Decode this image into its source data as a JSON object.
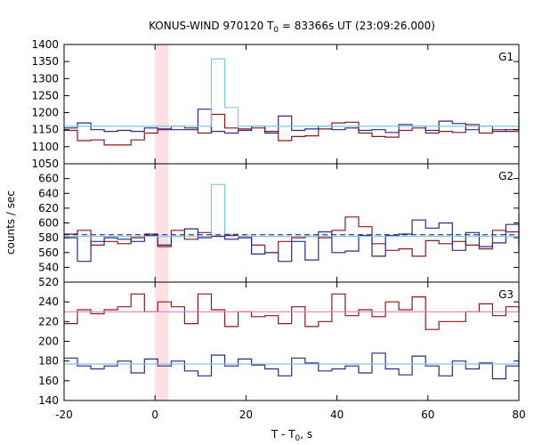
{
  "chart_data": {
    "type": "line",
    "title_main": "KONUS-WIND 970120 T",
    "title_sub": "0",
    "title_rest": " = 83366s UT (23:09:26.000)",
    "xlabel_main": "T - T",
    "xlabel_sub": "0",
    "xlabel_rest": ", s",
    "ylabel": "counts / sec",
    "xlim": [
      -20,
      80
    ],
    "x_ticks": [
      "-20",
      "0",
      "20",
      "40",
      "60",
      "80"
    ],
    "x_tick_values": [
      -20,
      0,
      20,
      40,
      60,
      80
    ],
    "highlight_band": [
      0,
      3
    ],
    "colors": {
      "dark_red": "#8b1a1a",
      "navy": "#2a2a8c",
      "light_blue": "#7ec8e3",
      "pink": "#e87fbf",
      "band": "#fde0e4",
      "dashed": "#1a1a6e"
    },
    "panels": [
      {
        "label": "G1",
        "ylim": [
          1050,
          1400
        ],
        "y_ticks": [
          "1050",
          "1100",
          "1150",
          "1200",
          "1250",
          "1300",
          "1350",
          "1400"
        ],
        "y_tick_values": [
          1050,
          1100,
          1150,
          1200,
          1250,
          1300,
          1350,
          1400
        ],
        "bins": {
          "start": -20,
          "width": 2.944
        },
        "series": [
          {
            "color_key": "dark_red",
            "values": [
              1148,
              1118,
              1120,
              1105,
              1105,
              1120,
              1140,
              1152,
              1160,
              1155,
              1140,
              1195,
              1155,
              1152,
              1155,
              1145,
              1118,
              1130,
              1132,
              1152,
              1170,
              1172,
              1140,
              1130,
              1128,
              1148,
              1155,
              1140,
              1145,
              1142,
              1165,
              1140,
              1150,
              1145
            ]
          },
          {
            "color_key": "navy",
            "values": [
              1155,
              1170,
              1150,
              1145,
              1148,
              1145,
              1155,
              1150,
              1150,
              1150,
              1210,
              1145,
              1140,
              1148,
              1160,
              1140,
              1190,
              1148,
              1152,
              1160,
              1150,
              1155,
              1148,
              1150,
              1142,
              1165,
              1160,
              1148,
              1175,
              1168,
              1150,
              1160,
              1145,
              1150,
              1185,
              1150
            ]
          },
          {
            "color_key": "light_blue",
            "values": [
              1160,
              1160,
              1160,
              1160,
              1160,
              1160,
              1160,
              1160,
              1160,
              1160,
              1160,
              1358,
              1215,
              1160,
              1160,
              1160,
              1160,
              1160,
              1160,
              1160,
              1160,
              1160,
              1160,
              1160,
              1160,
              1160,
              1160,
              1160,
              1160,
              1160,
              1160,
              1160,
              1160,
              1160
            ]
          }
        ]
      },
      {
        "label": "G2",
        "ylim": [
          520,
          680
        ],
        "y_ticks": [
          "520",
          "540",
          "560",
          "580",
          "600",
          "620",
          "640",
          "660"
        ],
        "y_tick_values": [
          520,
          540,
          560,
          580,
          600,
          620,
          640,
          660
        ],
        "bins": {
          "start": -20,
          "width": 2.944
        },
        "series": [
          {
            "color_key": "dark_red",
            "values": [
              585,
              590,
              570,
              575,
              572,
              580,
              585,
              568,
              590,
              578,
              587,
              582,
              583,
              582,
              570,
              560,
              575,
              580,
              582,
              580,
              590,
              608,
              595,
              572,
              563,
              565,
              555,
              576,
              572,
              575,
              570,
              565,
              590,
              588,
              612,
              570
            ]
          },
          {
            "color_key": "navy",
            "values": [
              580,
              548,
              575,
              580,
              578,
              575,
              583,
              570,
              582,
              592,
              580,
              582,
              578,
              580,
              558,
              560,
              548,
              575,
              550,
              588,
              560,
              562,
              583,
              555,
              583,
              585,
              604,
              593,
              600,
              563,
              587,
              568,
              573,
              598,
              560,
              580,
              586,
              566,
              580,
              590,
              568,
              575
            ]
          },
          {
            "color_key": "light_blue",
            "values": [
              582,
              582,
              582,
              582,
              582,
              582,
              582,
              582,
              582,
              582,
              582,
              652,
              585,
              582,
              582,
              582,
              582,
              582,
              582,
              582,
              582,
              582,
              582,
              582,
              582,
              582,
              582,
              582,
              582,
              582,
              582,
              582,
              582,
              582
            ]
          }
        ],
        "dashed_level": 584
      },
      {
        "label": "G3",
        "ylim": [
          140,
          260
        ],
        "y_ticks": [
          "140",
          "160",
          "180",
          "200",
          "220",
          "240"
        ],
        "y_tick_values": [
          140,
          160,
          180,
          200,
          220,
          240
        ],
        "bins": {
          "start": -20,
          "width": 2.944
        },
        "series": [
          {
            "color_key": "dark_red",
            "values": [
              218,
              232,
              228,
              232,
              235,
              248,
              230,
              240,
              235,
              218,
              248,
              232,
              215,
              230,
              225,
              226,
              218,
              235,
              215,
              220,
              248,
              226,
              232,
              225,
              240,
              232,
              245,
              212,
              220,
              220,
              230,
              238,
              226,
              235,
              230
            ]
          },
          {
            "color_key": "navy",
            "values": [
              183,
              175,
              172,
              175,
              180,
              168,
              182,
              175,
              180,
              170,
              165,
              186,
              175,
              182,
              176,
              172,
              165,
              183,
              178,
              170,
              172,
              175,
              168,
              188,
              172,
              166,
              185,
              175,
              165,
              180,
              172,
              178,
              162,
              175,
              190,
              180
            ]
          },
          {
            "color_key": "pink",
            "values": [
              230,
              230,
              230,
              230,
              230,
              230,
              230,
              230,
              230,
              230,
              230,
              230,
              230,
              230,
              230,
              230,
              230,
              230,
              230,
              230,
              230,
              230,
              230,
              230,
              230,
              230,
              230,
              230,
              230,
              230,
              230,
              230,
              230,
              230
            ]
          },
          {
            "color_key": "light_blue",
            "values": [
              177,
              177,
              177,
              177,
              177,
              177,
              177,
              177,
              177,
              177,
              177,
              177,
              177,
              177,
              177,
              177,
              177,
              177,
              177,
              177,
              177,
              177,
              177,
              177,
              177,
              177,
              177,
              177,
              177,
              177,
              177,
              177,
              177,
              177
            ]
          }
        ]
      }
    ]
  }
}
